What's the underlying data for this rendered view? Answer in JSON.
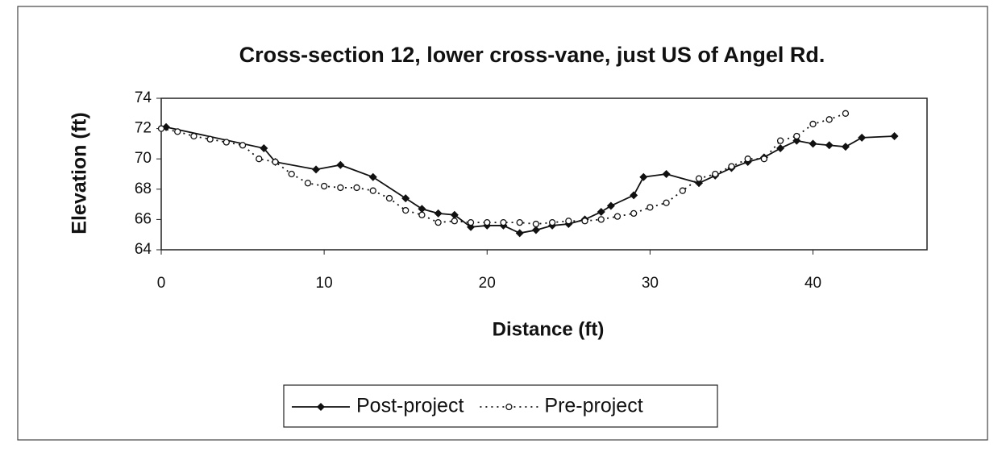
{
  "chart_data": {
    "type": "line",
    "title": "Cross-section 12, lower cross-vane, just US of Angel Rd.",
    "x_label": "Distance (ft)",
    "y_label": "Elevation (ft)",
    "xlim": [
      0,
      47
    ],
    "xticks": [
      0,
      10,
      20,
      30,
      40
    ],
    "ylim": [
      64,
      74
    ],
    "yticks": [
      64,
      66,
      68,
      70,
      72,
      74
    ],
    "legend": "bottom",
    "series": [
      {
        "name": "Post-project",
        "color": "#111111",
        "line_style": "solid",
        "marker": "diamond",
        "x": [
          0.3,
          6.3,
          7,
          9.5,
          11,
          13,
          15,
          16,
          17,
          18,
          19,
          20,
          21,
          22,
          23,
          24,
          25,
          26,
          27,
          27.6,
          29,
          29.6,
          31,
          33,
          34,
          35,
          36,
          37,
          38,
          39,
          40,
          41,
          42,
          43,
          45
        ],
        "values": [
          72.1,
          70.7,
          69.8,
          69.3,
          69.6,
          68.8,
          67.4,
          66.7,
          66.4,
          66.3,
          65.5,
          65.6,
          65.6,
          65.1,
          65.3,
          65.6,
          65.7,
          66.0,
          66.5,
          66.9,
          67.6,
          68.8,
          69.0,
          68.4,
          68.9,
          69.4,
          69.8,
          70.1,
          70.7,
          71.2,
          71.0,
          70.9,
          70.8,
          71.4,
          71.5
        ]
      },
      {
        "name": "Pre-project",
        "color": "#111111",
        "line_style": "dotted",
        "marker": "circle",
        "x": [
          0,
          1,
          2,
          3,
          4,
          5,
          6,
          7,
          8,
          9,
          10,
          11,
          12,
          13,
          14,
          15,
          16,
          17,
          18,
          19,
          20,
          21,
          22,
          23,
          24,
          25,
          26,
          27,
          28,
          29,
          30,
          31,
          32,
          33,
          34,
          35,
          36,
          37,
          38,
          39,
          40,
          41,
          42
        ],
        "values": [
          72.0,
          71.8,
          71.5,
          71.3,
          71.1,
          70.9,
          70.0,
          69.8,
          69.0,
          68.4,
          68.2,
          68.1,
          68.1,
          67.9,
          67.4,
          66.6,
          66.3,
          65.8,
          65.9,
          65.8,
          65.8,
          65.8,
          65.8,
          65.7,
          65.8,
          65.9,
          65.9,
          66.0,
          66.2,
          66.4,
          66.8,
          67.1,
          67.9,
          68.7,
          69.0,
          69.5,
          70.0,
          70.0,
          71.2,
          71.5,
          72.3,
          72.6,
          73.0
        ]
      }
    ]
  }
}
